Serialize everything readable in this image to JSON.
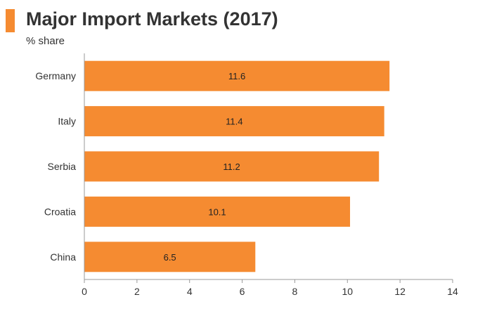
{
  "header": {
    "title": "Major Import Markets (2017)",
    "subtitle": "% share",
    "accent_color": "#f58b31"
  },
  "chart_data": {
    "type": "bar",
    "orientation": "horizontal",
    "title": "Major Import Markets (2017)",
    "ylabel": "% share",
    "categories": [
      "Germany",
      "Italy",
      "Serbia",
      "Croatia",
      "China"
    ],
    "values": [
      11.6,
      11.4,
      11.2,
      10.1,
      6.5
    ],
    "data_labels": [
      "11.6",
      "11.4",
      "11.2",
      "10.1",
      "6.5"
    ],
    "xlim": [
      0,
      14
    ],
    "xticks": [
      0,
      2,
      4,
      6,
      8,
      10,
      12,
      14
    ],
    "xtick_labels": [
      "0",
      "2",
      "4",
      "6",
      "8",
      "10",
      "12",
      "14"
    ],
    "grid": false,
    "bar_color": "#f58b31"
  }
}
